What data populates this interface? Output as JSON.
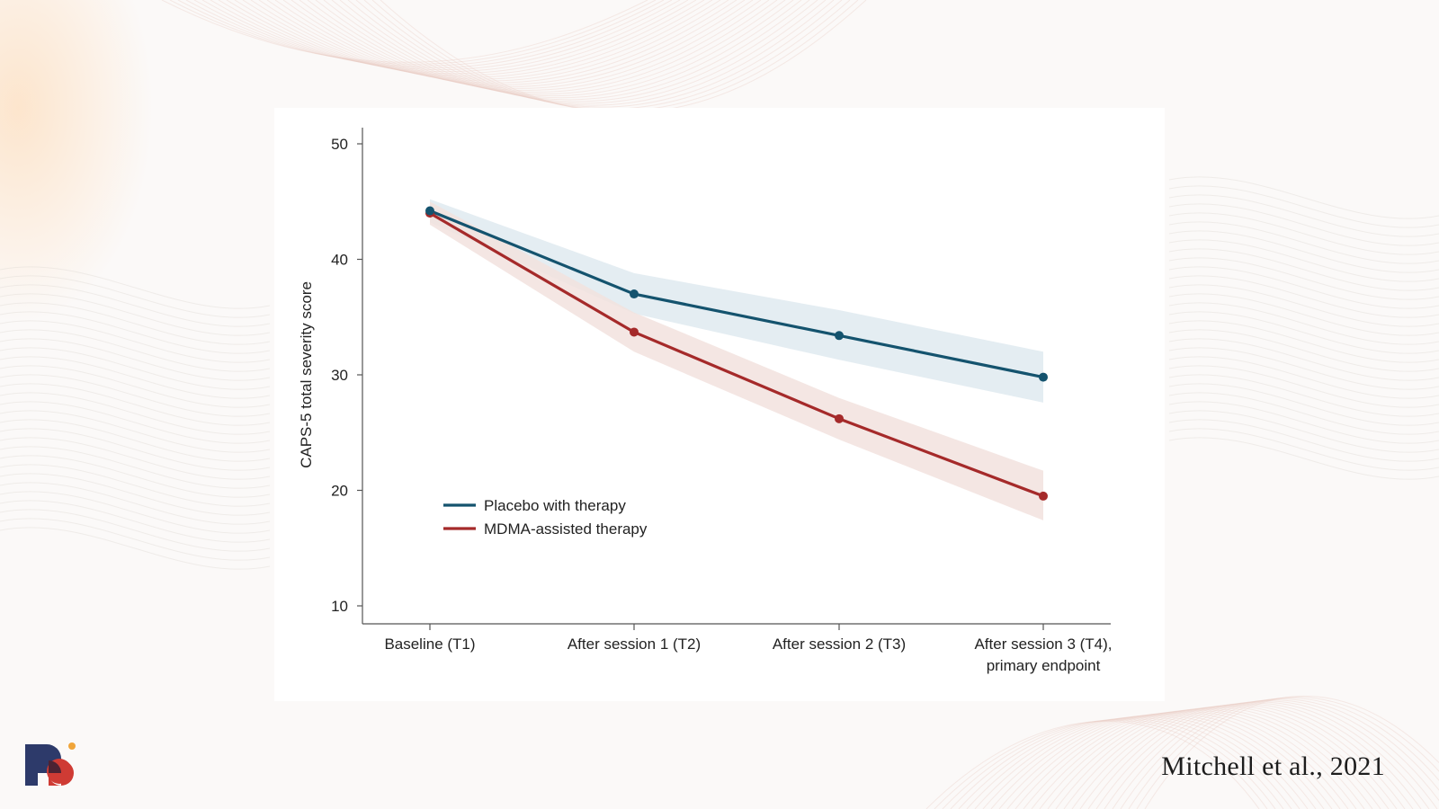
{
  "slide": {
    "citation": "Mitchell et al., 2021",
    "logo_icon": "brand-logo-icon"
  },
  "colors": {
    "placebo": "#14536e",
    "mdma": "#a52a2a",
    "placebo_band": "#dfeaf0",
    "mdma_band": "#f2e2de",
    "axis": "#555555",
    "text": "#222222"
  },
  "chart_data": {
    "type": "line",
    "title": "",
    "ylabel": "CAPS-5 total severity score",
    "xlabel": "",
    "ylim": [
      10,
      50
    ],
    "yticks": [
      10,
      20,
      30,
      40,
      50
    ],
    "categories": [
      [
        "Baseline (T1)"
      ],
      [
        "After session 1 (T2)"
      ],
      [
        "After session 2 (T3)"
      ],
      [
        "After session 3 (T4),",
        "primary endpoint"
      ]
    ],
    "legend_position": "lower-left",
    "grid": false,
    "series": [
      {
        "name": "Placebo with therapy",
        "color": "#14536e",
        "values": [
          44.2,
          37.0,
          33.4,
          29.8
        ],
        "ci_upper": [
          45.2,
          38.8,
          35.6,
          32.0
        ],
        "ci_lower": [
          43.2,
          35.3,
          31.3,
          27.6
        ]
      },
      {
        "name": "MDMA-assisted therapy",
        "color": "#a52a2a",
        "values": [
          44.0,
          33.7,
          26.2,
          19.5
        ],
        "ci_upper": [
          45.0,
          35.4,
          28.0,
          21.7
        ],
        "ci_lower": [
          43.0,
          32.0,
          24.4,
          17.4
        ]
      }
    ]
  }
}
